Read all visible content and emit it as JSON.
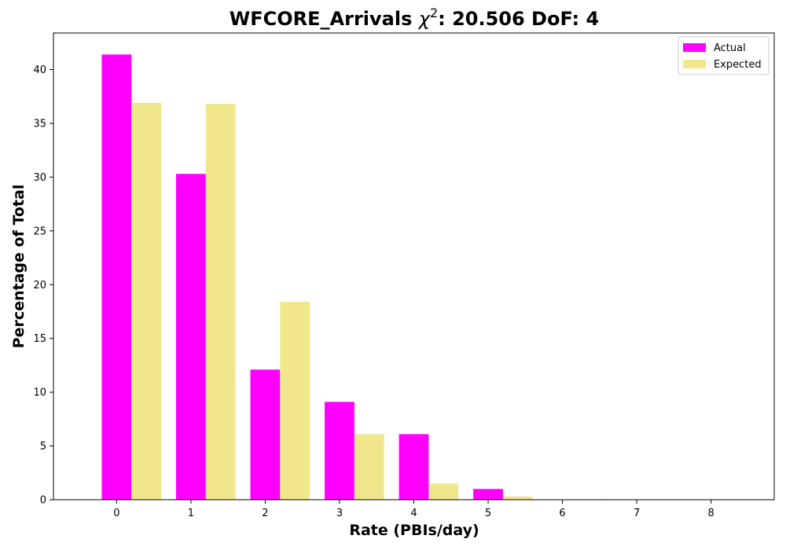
{
  "chart_data": {
    "type": "bar",
    "title_main": "WFCORE_Arrivals ",
    "title_chi": "χ",
    "title_sup": "2",
    "title_rest": ": 20.506 DoF: 4",
    "xlabel": "Rate (PBIs/day)",
    "ylabel": "Percentage of Total",
    "categories": [
      "0",
      "1",
      "2",
      "3",
      "4",
      "5",
      "6",
      "7",
      "8"
    ],
    "x": [
      0,
      1,
      2,
      3,
      4,
      5,
      6,
      7,
      8
    ],
    "xlim": [
      -0.85,
      8.85
    ],
    "ylim": [
      0,
      43.4
    ],
    "yticks": [
      0,
      5,
      10,
      15,
      20,
      25,
      30,
      35,
      40
    ],
    "series": [
      {
        "name": "Actual",
        "color": "#ff00ff",
        "offset": 0,
        "values": [
          41.4,
          30.3,
          12.1,
          9.1,
          6.1,
          1.0,
          0,
          0,
          0
        ]
      },
      {
        "name": "Expected",
        "color": "#f0e68c",
        "offset": 0.4,
        "values": [
          36.9,
          36.8,
          18.4,
          6.1,
          1.5,
          0.3,
          0.05,
          0,
          0
        ]
      }
    ],
    "bar_width": 0.4,
    "grid": false,
    "legend_position": "top-right"
  }
}
